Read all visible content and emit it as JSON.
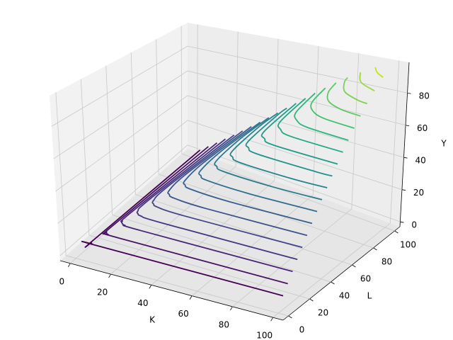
{
  "chart_data": {
    "type": "contour3d",
    "xlabel": "K",
    "ylabel": "L",
    "zlabel": "Y",
    "xlim": [
      -5,
      105
    ],
    "ylim": [
      -5,
      105
    ],
    "zlim": [
      -3,
      99
    ],
    "xticks": [
      0,
      20,
      40,
      60,
      80,
      100
    ],
    "yticks": [
      0,
      20,
      40,
      60,
      80,
      100
    ],
    "zticks": [
      0,
      20,
      40,
      60,
      80
    ],
    "grid": true,
    "contours": [
      {
        "level": 5,
        "color": "#440154",
        "K": [
          100,
          8.3,
          5.6,
          5,
          4.7,
          4.4,
          4.4
        ],
        "L": [
          4.4,
          4.4,
          4.7,
          5,
          5.6,
          8.3,
          100
        ]
      },
      {
        "level": 10,
        "color": "#471365",
        "K": [
          100,
          16.7,
          11.1,
          10,
          9.3,
          8.8,
          8.7
        ],
        "L": [
          8.7,
          8.8,
          9.3,
          10,
          11.1,
          16.7,
          100
        ]
      },
      {
        "level": 15,
        "color": "#482475",
        "K": [
          100,
          25,
          16.7,
          15,
          14,
          13.2,
          13.1
        ],
        "L": [
          13.1,
          13.2,
          14,
          15,
          16.7,
          25,
          100
        ]
      },
      {
        "level": 20,
        "color": "#463480",
        "K": [
          100,
          33.3,
          22.2,
          20,
          18.7,
          17.6,
          17.4
        ],
        "L": [
          17.4,
          17.6,
          18.7,
          20,
          22.2,
          33.3,
          100
        ]
      },
      {
        "level": 25,
        "color": "#414487",
        "K": [
          100,
          41.7,
          27.8,
          25,
          23.3,
          21.9,
          21.8
        ],
        "L": [
          21.8,
          21.9,
          23.3,
          25,
          27.8,
          41.7,
          100
        ]
      },
      {
        "level": 30,
        "color": "#3b528b",
        "K": [
          100,
          50,
          33.3,
          30,
          28,
          26.3,
          26.1
        ],
        "L": [
          26.1,
          26.3,
          28,
          30,
          33.3,
          50,
          100
        ]
      },
      {
        "level": 35,
        "color": "#355f8d",
        "K": [
          100,
          58.3,
          38.9,
          35,
          32.7,
          30.7,
          30.5
        ],
        "L": [
          30.5,
          30.7,
          32.7,
          35,
          38.9,
          58.3,
          100
        ]
      },
      {
        "level": 40,
        "color": "#2f6c8e",
        "K": [
          100,
          66.7,
          44.4,
          40,
          37.3,
          35.1,
          34.9
        ],
        "L": [
          34.9,
          35.1,
          37.3,
          40,
          44.4,
          66.7,
          100
        ]
      },
      {
        "level": 45,
        "color": "#2a788e",
        "K": [
          100,
          75,
          50,
          45,
          42,
          39.5,
          39.2
        ],
        "L": [
          39.2,
          39.5,
          42,
          45,
          50,
          75,
          100
        ]
      },
      {
        "level": 50,
        "color": "#25848e",
        "K": [
          100,
          83.3,
          55.6,
          50,
          46.7,
          43.9,
          43.7
        ],
        "L": [
          43.7,
          43.9,
          46.7,
          50,
          55.6,
          83.3,
          100
        ]
      },
      {
        "level": 55,
        "color": "#21918c",
        "K": [
          100,
          91.7,
          61.1,
          55,
          51.4,
          48.3,
          48.1
        ],
        "L": [
          48.1,
          48.3,
          51.4,
          55,
          61.1,
          91.7,
          100
        ]
      },
      {
        "level": 60,
        "color": "#1e9c89",
        "K": [
          100,
          66.7,
          60,
          56,
          52.7
        ],
        "L": [
          52.7,
          56,
          60,
          66.7,
          100
        ]
      },
      {
        "level": 65,
        "color": "#22a884",
        "K": [
          100,
          72.2,
          65,
          60.7,
          57.3
        ],
        "L": [
          57.3,
          60.7,
          65,
          72.2,
          100
        ]
      },
      {
        "level": 70,
        "color": "#2fb47c",
        "K": [
          100,
          77.8,
          70,
          65.4,
          62
        ],
        "L": [
          62,
          65.4,
          70,
          77.8,
          100
        ]
      },
      {
        "level": 75,
        "color": "#44bf70",
        "K": [
          100,
          83.3,
          75,
          70,
          67
        ],
        "L": [
          67,
          70,
          75,
          83.3,
          100
        ]
      },
      {
        "level": 80,
        "color": "#5ec962",
        "K": [
          100,
          88.9,
          80,
          74.7,
          72.2
        ],
        "L": [
          72.2,
          74.7,
          80,
          88.9,
          100
        ]
      },
      {
        "level": 85,
        "color": "#7ad151",
        "K": [
          100,
          94.4,
          85,
          79.4,
          77.8
        ],
        "L": [
          77.8,
          79.4,
          85,
          94.4,
          100
        ]
      },
      {
        "level": 90,
        "color": "#9bd93c",
        "K": [
          100,
          90,
          84
        ],
        "L": [
          84,
          90,
          100
        ]
      },
      {
        "level": 95,
        "color": "#c2df23",
        "K": [
          100,
          95,
          91.2
        ],
        "L": [
          91.2,
          95,
          100
        ]
      }
    ]
  }
}
